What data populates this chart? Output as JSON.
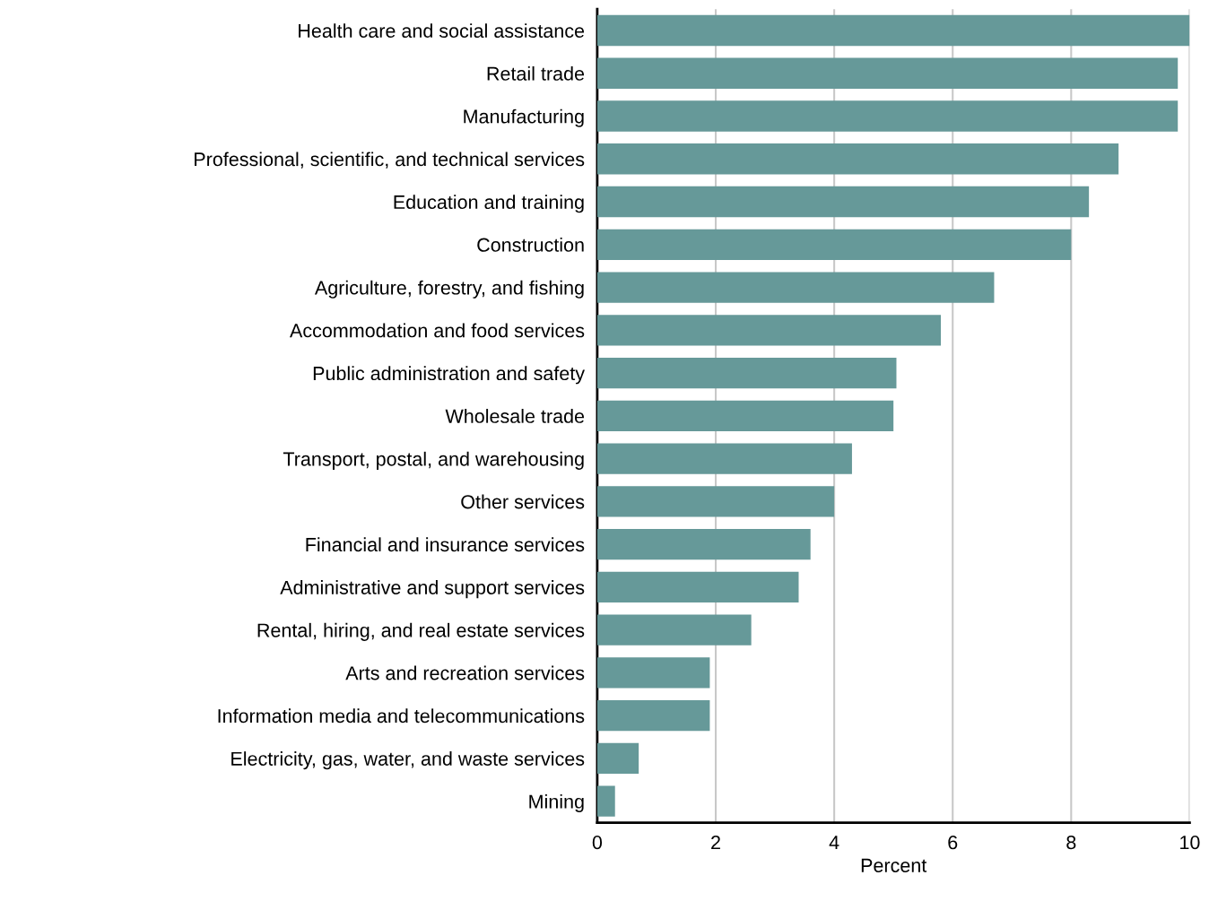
{
  "chart_data": {
    "type": "bar",
    "orientation": "horizontal",
    "xlabel": "Percent",
    "categories": [
      "Health care and social assistance",
      "Retail trade",
      "Manufacturing",
      "Professional, scientific, and technical services",
      "Education and training",
      "Construction",
      "Agriculture, forestry, and fishing",
      "Accommodation and food services",
      "Public administration and safety",
      "Wholesale trade",
      "Transport, postal, and warehousing",
      "Other services",
      "Financial and insurance services",
      "Administrative and support services",
      "Rental, hiring, and real estate services",
      "Arts and recreation services",
      "Information media and telecommunications",
      "Electricity, gas, water, and waste services",
      "Mining"
    ],
    "values": [
      10.0,
      9.8,
      9.8,
      8.8,
      8.3,
      8.0,
      6.7,
      5.8,
      5.05,
      5.0,
      4.3,
      4.0,
      3.6,
      3.4,
      2.6,
      1.9,
      1.9,
      0.7,
      0.3
    ],
    "color": "#669999",
    "xlim": [
      0,
      10
    ],
    "xticks": [
      0,
      2,
      4,
      6,
      8,
      10
    ],
    "grid": "x"
  }
}
